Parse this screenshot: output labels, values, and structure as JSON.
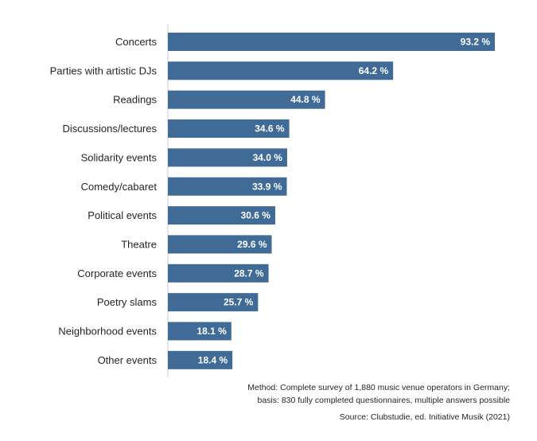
{
  "chart_data": {
    "type": "bar",
    "orientation": "horizontal",
    "title": "",
    "xlabel": "",
    "ylabel": "",
    "categories": [
      "Concerts",
      "Parties with artistic DJs",
      "Readings",
      "Discussions/lectures",
      "Solidarity events",
      "Comedy/cabaret",
      "Political events",
      "Theatre",
      "Corporate events",
      "Poetry slams",
      "Neighborhood events",
      "Other events"
    ],
    "values": [
      93.2,
      64.2,
      44.8,
      34.6,
      34.0,
      33.9,
      30.6,
      29.6,
      28.7,
      25.7,
      18.1,
      18.4
    ],
    "value_labels": [
      "93.2 %",
      "64.2 %",
      "44.8 %",
      "34.6 %",
      "34.0 %",
      "33.9 %",
      "30.6 %",
      "29.6 %",
      "28.7 %",
      "25.7 %",
      "18.1 %",
      "18.4 %"
    ],
    "unit": "%",
    "xlim": [
      0,
      100
    ],
    "grid": false,
    "bar_color": "#3f6b96",
    "axis_color": "#c8cdd3"
  },
  "notes": {
    "method_line1": "Method: Complete survey of 1,880 music venue operators in Germany;",
    "method_line2": "basis: 830 fully completed questionnaires, multiple answers possible",
    "source": "Source: Clubstudie, ed. Initiative Musik (2021)"
  }
}
